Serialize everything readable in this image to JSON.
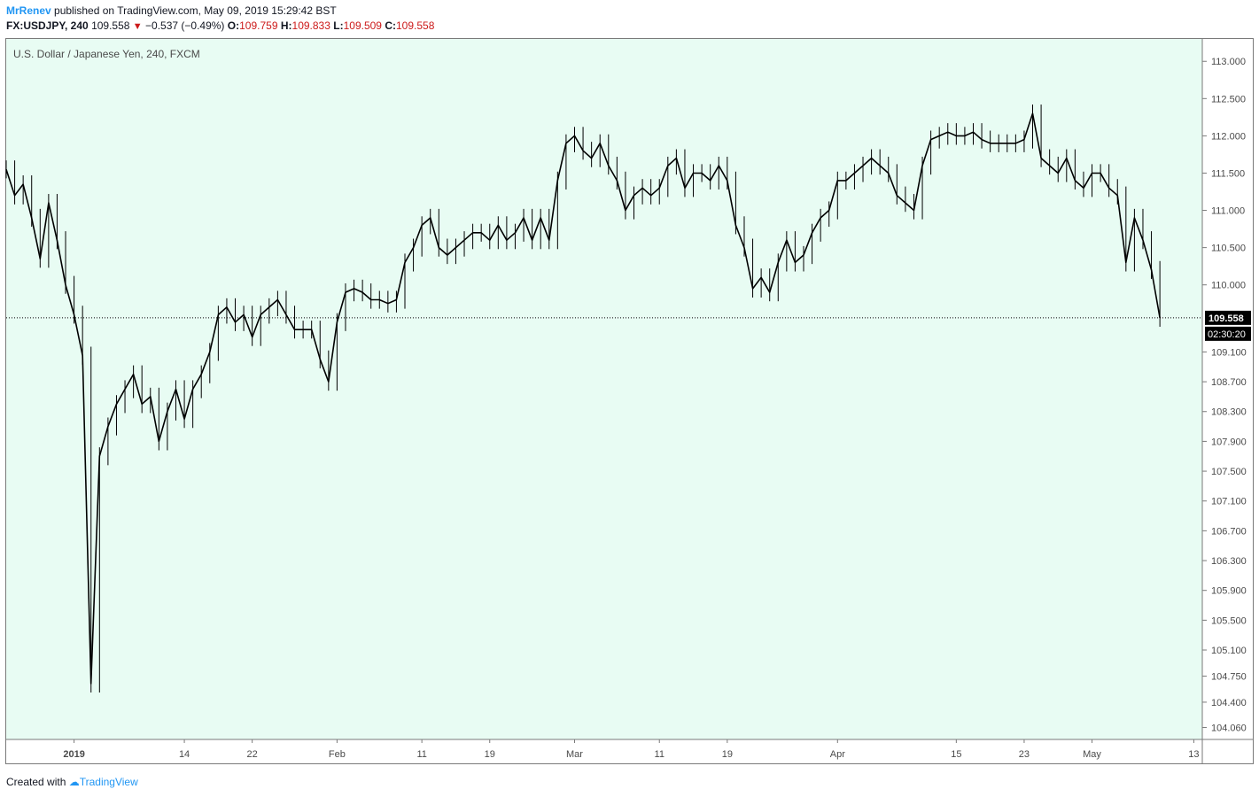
{
  "header": {
    "author": "MrRenev",
    "published_text": "published on TradingView.com, May 09, 2019 15:29:42 BST",
    "symbol": "FX:USDJPY, 240",
    "last": "109.558",
    "change": "−0.537 (−0.49%)",
    "open_label": "O:",
    "open": "109.759",
    "high_label": "H:",
    "high": "109.833",
    "low_label": "L:",
    "low": "109.509",
    "close_label": "C:",
    "close": "109.558"
  },
  "series_title": "U.S. Dollar / Japanese Yen, 240, FXCM",
  "footer": {
    "created_with": "Created with",
    "brand": "TradingView"
  },
  "colors": {
    "plot_bg": "#e8fcf3",
    "candle": "#000000",
    "author": "#2196f3",
    "down": "#cc1a1a"
  },
  "chart_data": {
    "type": "line",
    "style": "candlestick (4h bars, rendered as price path)",
    "ylim": [
      103.9,
      113.3
    ],
    "y_ticks": [
      104.06,
      104.4,
      104.75,
      105.1,
      105.5,
      105.9,
      106.3,
      106.7,
      107.1,
      107.5,
      107.9,
      108.3,
      108.7,
      109.1,
      110.0,
      110.5,
      111.0,
      111.5,
      112.0,
      112.5,
      113.0
    ],
    "y_tick_labels": [
      "104.060",
      "104.400",
      "104.750",
      "105.100",
      "105.500",
      "105.900",
      "106.300",
      "106.700",
      "107.100",
      "107.500",
      "107.900",
      "108.300",
      "108.700",
      "109.100",
      "110.000",
      "110.500",
      "111.000",
      "111.500",
      "112.000",
      "112.500",
      "113.000"
    ],
    "x_range": [
      "2018-12-24",
      "2019-05-14"
    ],
    "x_ticks": [
      {
        "date": "2019-01-01",
        "label": "2019",
        "bold": true
      },
      {
        "date": "2019-01-14",
        "label": "14",
        "bold": false
      },
      {
        "date": "2019-01-22",
        "label": "22",
        "bold": false
      },
      {
        "date": "2019-02-01",
        "label": "Feb",
        "bold": false
      },
      {
        "date": "2019-02-11",
        "label": "11",
        "bold": false
      },
      {
        "date": "2019-02-19",
        "label": "19",
        "bold": false
      },
      {
        "date": "2019-03-01",
        "label": "Mar",
        "bold": false
      },
      {
        "date": "2019-03-11",
        "label": "11",
        "bold": false
      },
      {
        "date": "2019-03-19",
        "label": "19",
        "bold": false
      },
      {
        "date": "2019-04-01",
        "label": "Apr",
        "bold": false
      },
      {
        "date": "2019-04-15",
        "label": "15",
        "bold": false
      },
      {
        "date": "2019-04-23",
        "label": "23",
        "bold": false
      },
      {
        "date": "2019-05-01",
        "label": "May",
        "bold": false
      },
      {
        "date": "2019-05-13",
        "label": "13",
        "bold": false
      }
    ],
    "last_price": {
      "value": 109.558,
      "label": "109.558",
      "countdown": "02:30:20"
    },
    "points": [
      [
        "2018-12-24",
        111.55
      ],
      [
        "2018-12-25",
        111.2
      ],
      [
        "2018-12-26",
        111.35
      ],
      [
        "2018-12-27",
        110.9
      ],
      [
        "2018-12-28",
        110.35
      ],
      [
        "2018-12-29",
        111.1
      ],
      [
        "2018-12-30",
        110.6
      ],
      [
        "2018-12-31",
        110.0
      ],
      [
        "2019-01-01",
        109.6
      ],
      [
        "2019-01-02",
        109.05
      ],
      [
        "2019-01-03",
        104.65
      ],
      [
        "2019-01-04",
        107.7
      ],
      [
        "2019-01-05",
        108.1
      ],
      [
        "2019-01-06",
        108.4
      ],
      [
        "2019-01-07",
        108.6
      ],
      [
        "2019-01-08",
        108.8
      ],
      [
        "2019-01-09",
        108.4
      ],
      [
        "2019-01-10",
        108.5
      ],
      [
        "2019-01-11",
        107.9
      ],
      [
        "2019-01-12",
        108.3
      ],
      [
        "2019-01-13",
        108.6
      ],
      [
        "2019-01-14",
        108.2
      ],
      [
        "2019-01-15",
        108.6
      ],
      [
        "2019-01-16",
        108.8
      ],
      [
        "2019-01-17",
        109.1
      ],
      [
        "2019-01-18",
        109.6
      ],
      [
        "2019-01-19",
        109.7
      ],
      [
        "2019-01-20",
        109.5
      ],
      [
        "2019-01-21",
        109.6
      ],
      [
        "2019-01-22",
        109.3
      ],
      [
        "2019-01-23",
        109.6
      ],
      [
        "2019-01-24",
        109.7
      ],
      [
        "2019-01-25",
        109.8
      ],
      [
        "2019-01-26",
        109.6
      ],
      [
        "2019-01-27",
        109.4
      ],
      [
        "2019-01-28",
        109.4
      ],
      [
        "2019-01-29",
        109.4
      ],
      [
        "2019-01-30",
        109.0
      ],
      [
        "2019-01-31",
        108.7
      ],
      [
        "2019-02-01",
        109.5
      ],
      [
        "2019-02-02",
        109.9
      ],
      [
        "2019-02-03",
        109.95
      ],
      [
        "2019-02-04",
        109.9
      ],
      [
        "2019-02-05",
        109.8
      ],
      [
        "2019-02-06",
        109.8
      ],
      [
        "2019-02-07",
        109.75
      ],
      [
        "2019-02-08",
        109.8
      ],
      [
        "2019-02-09",
        110.3
      ],
      [
        "2019-02-10",
        110.5
      ],
      [
        "2019-02-11",
        110.8
      ],
      [
        "2019-02-12",
        110.9
      ],
      [
        "2019-02-13",
        110.5
      ],
      [
        "2019-02-14",
        110.4
      ],
      [
        "2019-02-15",
        110.5
      ],
      [
        "2019-02-16",
        110.6
      ],
      [
        "2019-02-17",
        110.7
      ],
      [
        "2019-02-18",
        110.7
      ],
      [
        "2019-02-19",
        110.6
      ],
      [
        "2019-02-20",
        110.8
      ],
      [
        "2019-02-21",
        110.6
      ],
      [
        "2019-02-22",
        110.7
      ],
      [
        "2019-02-23",
        110.9
      ],
      [
        "2019-02-24",
        110.6
      ],
      [
        "2019-02-25",
        110.9
      ],
      [
        "2019-02-26",
        110.6
      ],
      [
        "2019-02-27",
        111.4
      ],
      [
        "2019-02-28",
        111.9
      ],
      [
        "2019-03-01",
        112.0
      ],
      [
        "2019-03-02",
        111.8
      ],
      [
        "2019-03-03",
        111.7
      ],
      [
        "2019-03-04",
        111.9
      ],
      [
        "2019-03-05",
        111.6
      ],
      [
        "2019-03-06",
        111.4
      ],
      [
        "2019-03-07",
        111.0
      ],
      [
        "2019-03-08",
        111.2
      ],
      [
        "2019-03-09",
        111.3
      ],
      [
        "2019-03-10",
        111.2
      ],
      [
        "2019-03-11",
        111.3
      ],
      [
        "2019-03-12",
        111.6
      ],
      [
        "2019-03-13",
        111.7
      ],
      [
        "2019-03-14",
        111.3
      ],
      [
        "2019-03-15",
        111.5
      ],
      [
        "2019-03-16",
        111.5
      ],
      [
        "2019-03-17",
        111.4
      ],
      [
        "2019-03-18",
        111.6
      ],
      [
        "2019-03-19",
        111.4
      ],
      [
        "2019-03-20",
        110.8
      ],
      [
        "2019-03-21",
        110.5
      ],
      [
        "2019-03-22",
        109.95
      ],
      [
        "2019-03-23",
        110.1
      ],
      [
        "2019-03-24",
        109.9
      ],
      [
        "2019-03-25",
        110.3
      ],
      [
        "2019-03-26",
        110.6
      ],
      [
        "2019-03-27",
        110.3
      ],
      [
        "2019-03-28",
        110.4
      ],
      [
        "2019-03-29",
        110.7
      ],
      [
        "2019-03-30",
        110.9
      ],
      [
        "2019-03-31",
        111.0
      ],
      [
        "2019-04-01",
        111.4
      ],
      [
        "2019-04-02",
        111.4
      ],
      [
        "2019-04-03",
        111.5
      ],
      [
        "2019-04-04",
        111.6
      ],
      [
        "2019-04-05",
        111.7
      ],
      [
        "2019-04-06",
        111.6
      ],
      [
        "2019-04-07",
        111.5
      ],
      [
        "2019-04-08",
        111.2
      ],
      [
        "2019-04-09",
        111.1
      ],
      [
        "2019-04-10",
        111.0
      ],
      [
        "2019-04-11",
        111.6
      ],
      [
        "2019-04-12",
        111.95
      ],
      [
        "2019-04-13",
        112.0
      ],
      [
        "2019-04-14",
        112.05
      ],
      [
        "2019-04-15",
        112.0
      ],
      [
        "2019-04-16",
        112.0
      ],
      [
        "2019-04-17",
        112.05
      ],
      [
        "2019-04-18",
        111.95
      ],
      [
        "2019-04-19",
        111.9
      ],
      [
        "2019-04-20",
        111.9
      ],
      [
        "2019-04-21",
        111.9
      ],
      [
        "2019-04-22",
        111.9
      ],
      [
        "2019-04-23",
        111.95
      ],
      [
        "2019-04-24",
        112.3
      ],
      [
        "2019-04-25",
        111.7
      ],
      [
        "2019-04-26",
        111.6
      ],
      [
        "2019-04-27",
        111.5
      ],
      [
        "2019-04-28",
        111.7
      ],
      [
        "2019-04-29",
        111.4
      ],
      [
        "2019-04-30",
        111.3
      ],
      [
        "2019-05-01",
        111.5
      ],
      [
        "2019-05-02",
        111.5
      ],
      [
        "2019-05-03",
        111.3
      ],
      [
        "2019-05-04",
        111.2
      ],
      [
        "2019-05-05",
        110.3
      ],
      [
        "2019-05-06",
        110.9
      ],
      [
        "2019-05-07",
        110.6
      ],
      [
        "2019-05-08",
        110.2
      ],
      [
        "2019-05-09",
        109.558
      ]
    ]
  }
}
